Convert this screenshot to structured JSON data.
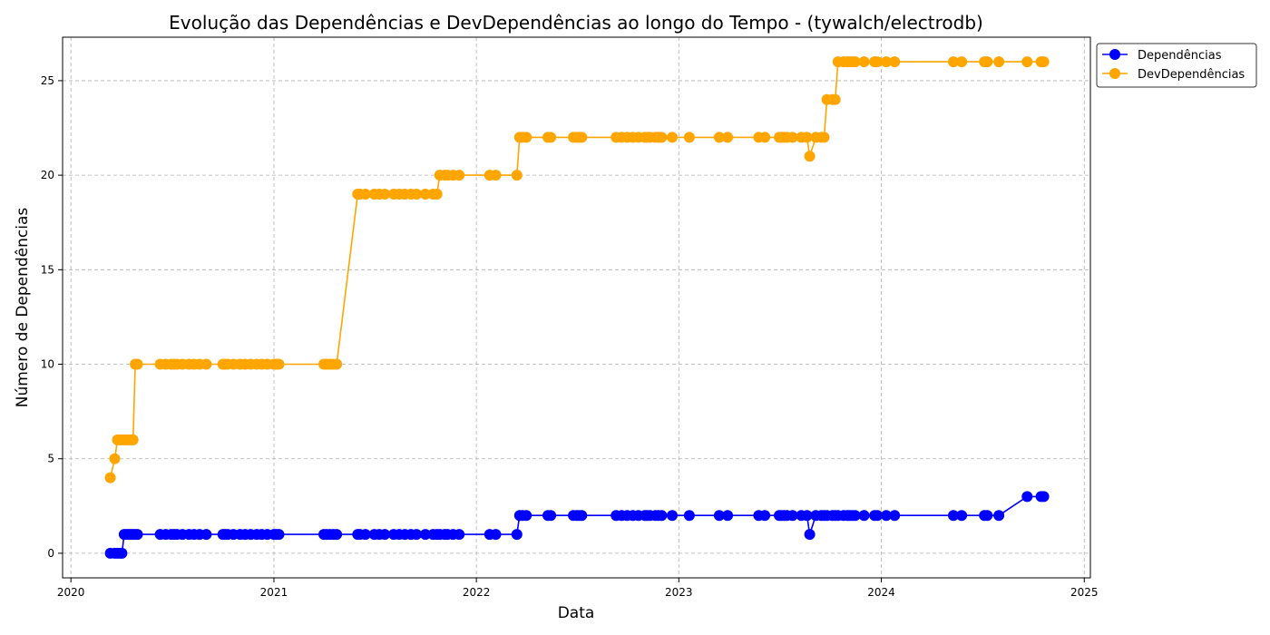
{
  "chart_data": {
    "type": "line",
    "title": "Evolução das Dependências e DevDependências ao longo do Tempo - (tywalch/electrodb)",
    "xlabel": "Data",
    "ylabel": "Número de Dependências",
    "x_ticks": [
      "2020",
      "2021",
      "2022",
      "2023",
      "2024",
      "2025"
    ],
    "y_ticks": [
      "0",
      "5",
      "10",
      "15",
      "20",
      "25"
    ],
    "xlim": [
      "2019-12-17",
      "2025-01-12"
    ],
    "ylim": [
      -1.3,
      27.3
    ],
    "grid": true,
    "legend_position": "top-right outside",
    "x": [
      "2020-03-12",
      "2020-03-20",
      "2020-03-25",
      "2020-03-30",
      "2020-04-02",
      "2020-04-06",
      "2020-04-10",
      "2020-04-14",
      "2020-04-18",
      "2020-04-22",
      "2020-04-26",
      "2020-04-30",
      "2020-06-10",
      "2020-06-20",
      "2020-06-30",
      "2020-07-05",
      "2020-07-10",
      "2020-07-20",
      "2020-08-01",
      "2020-08-10",
      "2020-08-20",
      "2020-09-01",
      "2020-10-01",
      "2020-10-05",
      "2020-10-10",
      "2020-10-20",
      "2020-11-01",
      "2020-11-10",
      "2020-11-20",
      "2020-12-01",
      "2020-12-10",
      "2020-12-20",
      "2021-01-01",
      "2021-01-05",
      "2021-01-10",
      "2021-04-01",
      "2021-04-06",
      "2021-04-12",
      "2021-04-18",
      "2021-04-24",
      "2021-06-01",
      "2021-06-05",
      "2021-06-15",
      "2021-07-01",
      "2021-07-10",
      "2021-07-20",
      "2021-08-05",
      "2021-08-15",
      "2021-08-25",
      "2021-09-05",
      "2021-09-15",
      "2021-10-01",
      "2021-10-15",
      "2021-10-22",
      "2021-10-27",
      "2021-11-05",
      "2021-11-10",
      "2021-11-20",
      "2021-12-01",
      "2022-01-25",
      "2022-02-05",
      "2022-03-15",
      "2022-03-20",
      "2022-03-25",
      "2022-04-01",
      "2022-05-10",
      "2022-05-15",
      "2022-06-25",
      "2022-07-01",
      "2022-07-05",
      "2022-07-10",
      "2022-09-10",
      "2022-09-20",
      "2022-09-30",
      "2022-10-10",
      "2022-10-20",
      "2022-11-01",
      "2022-11-05",
      "2022-11-10",
      "2022-11-20",
      "2022-11-25",
      "2022-12-01",
      "2022-12-20",
      "2023-01-20",
      "2023-03-15",
      "2023-03-30",
      "2023-05-25",
      "2023-06-05",
      "2023-07-01",
      "2023-07-05",
      "2023-07-10",
      "2023-07-15",
      "2023-07-25",
      "2023-08-10",
      "2023-08-20",
      "2023-08-25",
      "2023-09-05",
      "2023-09-15",
      "2023-09-20",
      "2023-09-25",
      "2023-10-05",
      "2023-10-10",
      "2023-10-15",
      "2023-10-25",
      "2023-11-01",
      "2023-11-05",
      "2023-11-10",
      "2023-11-15",
      "2023-12-01",
      "2023-12-20",
      "2023-12-25",
      "2024-01-10",
      "2024-01-25",
      "2024-05-10",
      "2024-05-25",
      "2024-07-05",
      "2024-07-10",
      "2024-07-31",
      "2024-09-20",
      "2024-10-15",
      "2024-10-20"
    ],
    "series": [
      {
        "name": "Dependências",
        "color": "#0000ff",
        "values": [
          0,
          0,
          0,
          0,
          0,
          1,
          1,
          1,
          1,
          1,
          1,
          1,
          1,
          1,
          1,
          1,
          1,
          1,
          1,
          1,
          1,
          1,
          1,
          1,
          1,
          1,
          1,
          1,
          1,
          1,
          1,
          1,
          1,
          1,
          1,
          1,
          1,
          1,
          1,
          1,
          1,
          1,
          1,
          1,
          1,
          1,
          1,
          1,
          1,
          1,
          1,
          1,
          1,
          1,
          1,
          1,
          1,
          1,
          1,
          1,
          1,
          1,
          2,
          2,
          2,
          2,
          2,
          2,
          2,
          2,
          2,
          2,
          2,
          2,
          2,
          2,
          2,
          2,
          2,
          2,
          2,
          2,
          2,
          2,
          2,
          2,
          2,
          2,
          2,
          2,
          2,
          2,
          2,
          2,
          2,
          1,
          2,
          2,
          2,
          2,
          2,
          2,
          2,
          2,
          2,
          2,
          2,
          2,
          2,
          2,
          2,
          2,
          2,
          2,
          2,
          2,
          2,
          2,
          3,
          3,
          3
        ]
      },
      {
        "name": "DevDependências",
        "color": "#ffa500",
        "values": [
          4,
          5,
          6,
          6,
          6,
          6,
          6,
          6,
          6,
          6,
          10,
          10,
          10,
          10,
          10,
          10,
          10,
          10,
          10,
          10,
          10,
          10,
          10,
          10,
          10,
          10,
          10,
          10,
          10,
          10,
          10,
          10,
          10,
          10,
          10,
          10,
          10,
          10,
          10,
          10,
          19,
          19,
          19,
          19,
          19,
          19,
          19,
          19,
          19,
          19,
          19,
          19,
          19,
          19,
          20,
          20,
          20,
          20,
          20,
          20,
          20,
          20,
          22,
          22,
          22,
          22,
          22,
          22,
          22,
          22,
          22,
          22,
          22,
          22,
          22,
          22,
          22,
          22,
          22,
          22,
          22,
          22,
          22,
          22,
          22,
          22,
          22,
          22,
          22,
          22,
          22,
          22,
          22,
          22,
          22,
          21,
          22,
          22,
          22,
          24,
          24,
          24,
          26,
          26,
          26,
          26,
          26,
          26,
          26,
          26,
          26,
          26,
          26,
          26,
          26,
          26,
          26,
          26,
          26,
          26,
          26
        ]
      }
    ]
  }
}
